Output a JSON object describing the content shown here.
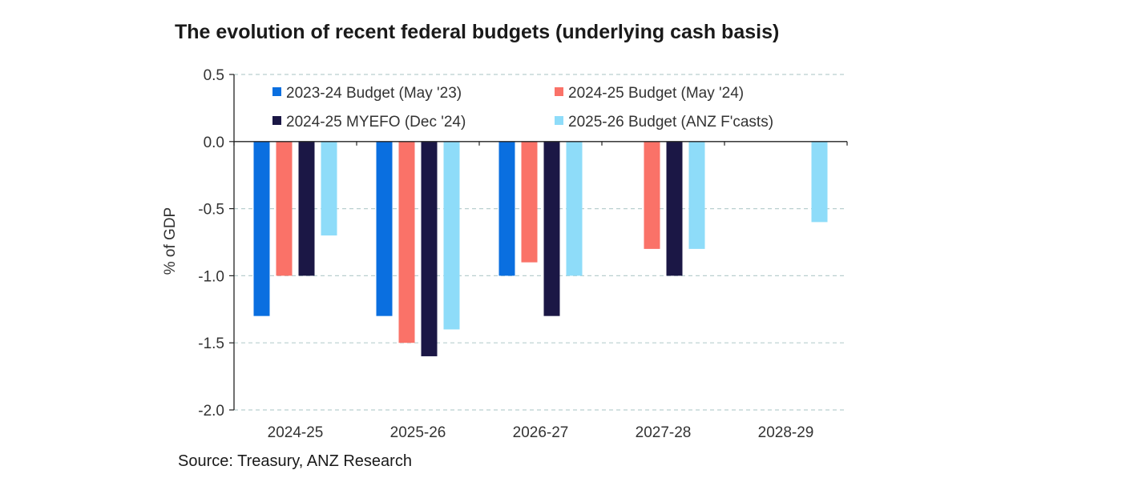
{
  "chart_data": {
    "type": "bar",
    "title": "The evolution of recent federal budgets (underlying cash basis)",
    "ylabel": "% of GDP",
    "xlabel": "",
    "ylim": [
      -2.0,
      0.5
    ],
    "yticks": [
      "0.5",
      "0.0",
      "-0.5",
      "-1.0",
      "-1.5",
      "-2.0"
    ],
    "ytick_values": [
      0.5,
      0.0,
      -0.5,
      -1.0,
      -1.5,
      -2.0
    ],
    "grid": true,
    "legend_position": "top",
    "categories": [
      "2024-25",
      "2025-26",
      "2026-27",
      "2027-28",
      "2028-29"
    ],
    "series": [
      {
        "name": "2023-24 Budget (May '23)",
        "color": "#0a6fe0",
        "values": [
          -1.3,
          -1.3,
          -1.0,
          null,
          null
        ]
      },
      {
        "name": "2024-25 Budget (May '24)",
        "color": "#fa7268",
        "values": [
          -1.0,
          -1.5,
          -0.9,
          -0.8,
          null
        ]
      },
      {
        "name": "2024-25 MYEFO (Dec '24)",
        "color": "#1b1745",
        "values": [
          -1.0,
          -1.6,
          -1.3,
          -1.0,
          null
        ]
      },
      {
        "name": "2025-26 Budget (ANZ F'casts)",
        "color": "#8edcf9",
        "values": [
          -0.7,
          -1.4,
          -1.0,
          -0.8,
          -0.6
        ]
      }
    ],
    "source": "Source: Treasury, ANZ Research"
  }
}
